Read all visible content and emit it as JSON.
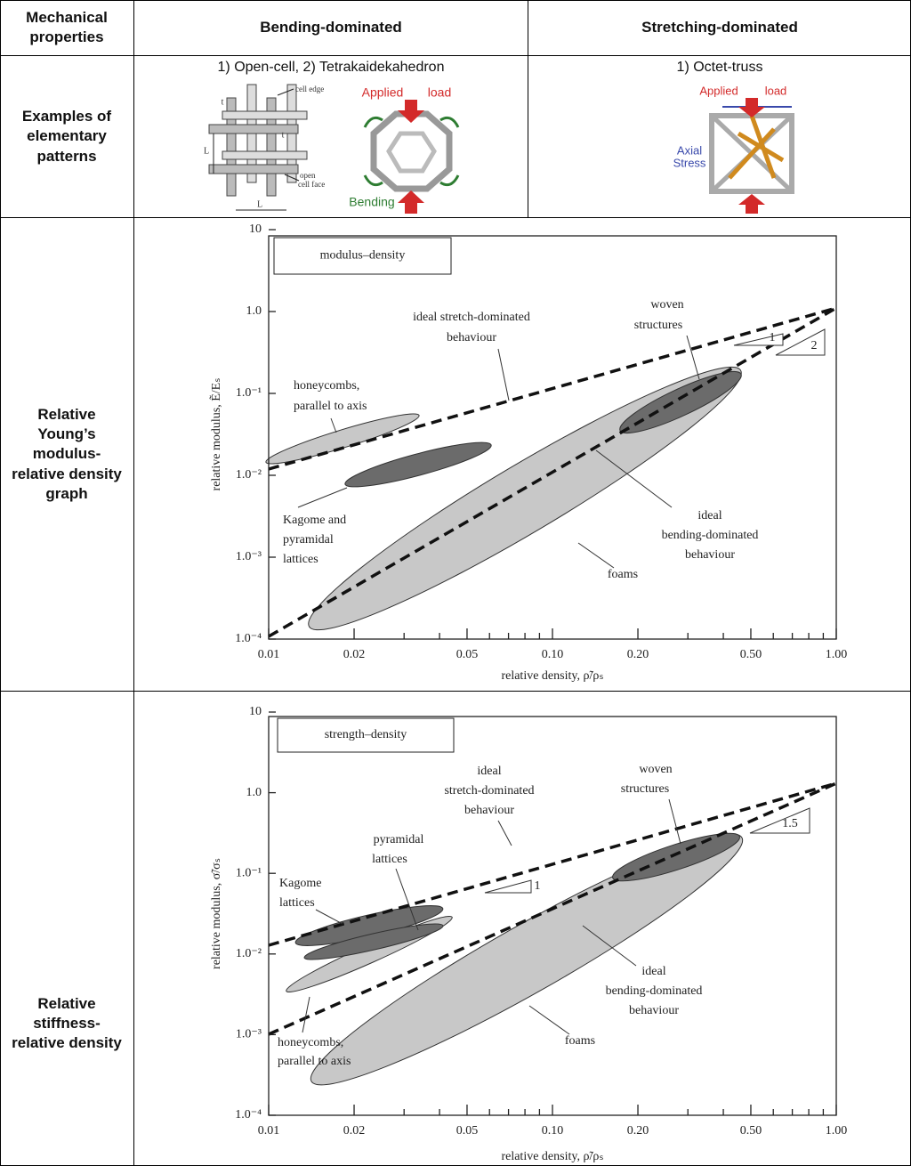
{
  "table": {
    "header": [
      "Mechanical properties",
      "Bending-dominated",
      "Stretching-dominated"
    ],
    "rows": [
      {
        "label": "Examples of elementary patterns",
        "bending": {
          "caption": "1) Open-cell, 2) Tetrakaidekahedron",
          "labels": [
            "cell edge",
            "open",
            "cell face",
            "t",
            "t",
            "L",
            "L",
            "Applied",
            "load",
            "Bending"
          ]
        },
        "stretching": {
          "caption": "1) Octet-truss",
          "labels": [
            "Applied",
            "load",
            "Axial",
            "Stress"
          ]
        }
      },
      {
        "label": "Relative Young’s modulus-relative density graph",
        "chart": {
          "type": "line",
          "log_x": true,
          "log_y": true,
          "legend_box": "modulus–density",
          "xlabel": "relative density, ρ̃/ρₛ",
          "ylabel": "relative modulus, Ẽ/Eₛ",
          "xlim": [
            0.01,
            1
          ],
          "ylim": [
            0.0001,
            10
          ],
          "xticks": [
            0.01,
            0.02,
            0.05,
            {
              "value": 0.1,
              "label": "0.10"
            },
            {
              "value": 0.2,
              "label": "0.20"
            },
            {
              "value": 0.5,
              "label": "0.50"
            },
            {
              "value": 1,
              "label": "1.00"
            }
          ],
          "xminorticks": [
            0.03,
            0.04,
            0.06,
            0.07,
            0.08,
            0.09,
            0.3,
            0.4,
            0.6,
            0.7,
            0.8,
            0.9
          ],
          "yticks": [
            10,
            {
              "value": 1,
              "label": "1.0"
            },
            {
              "value": 0.1,
              "label": "1.0⁻¹"
            },
            {
              "value": 0.01,
              "label": "1.0⁻²"
            },
            {
              "value": 0.001,
              "label": "1.0⁻³"
            },
            {
              "value": 0.0001,
              "label": "1.0⁻⁴"
            }
          ],
          "annotations": [
            {
              "lines": [
                "ideal stretch-dominated",
                "behaviour"
              ]
            },
            {
              "lines": [
                "woven",
                "structures"
              ]
            },
            {
              "lines": [
                "honeycombs,",
                "parallel to axis"
              ]
            },
            {
              "lines": [
                "Kagome and",
                "pyramidal",
                "lattices"
              ]
            },
            {
              "lines": [
                "ideal",
                "bending-dominated",
                "behaviour"
              ]
            },
            {
              "lines": [
                "foams"
              ]
            }
          ],
          "slope_labels": [
            "1",
            "2"
          ]
        }
      },
      {
        "label": "Relative stiffness-relative density",
        "chart": {
          "type": "line",
          "log_x": true,
          "log_y": true,
          "legend_box": "strength–density",
          "xlabel": "relative density, ρ̃/ρₛ",
          "ylabel": "relative modulus, σ̃/σₛ",
          "xlim": [
            0.01,
            1
          ],
          "ylim": [
            0.0001,
            10
          ],
          "xticks": [
            0.01,
            0.02,
            0.05,
            {
              "value": 0.1,
              "label": "0.10"
            },
            {
              "value": 0.2,
              "label": "0.20"
            },
            {
              "value": 0.5,
              "label": "0.50"
            },
            {
              "value": 1,
              "label": "1.00"
            }
          ],
          "xminorticks": [
            0.03,
            0.04,
            0.06,
            0.07,
            0.08,
            0.09,
            0.3,
            0.4,
            0.6,
            0.7,
            0.8,
            0.9
          ],
          "yticks": [
            10,
            {
              "value": 1,
              "label": "1.0"
            },
            {
              "value": 0.1,
              "label": "1.0⁻¹"
            },
            {
              "value": 0.01,
              "label": "1.0⁻²"
            },
            {
              "value": 0.001,
              "label": "1.0⁻³"
            },
            {
              "value": 0.0001,
              "label": "1.0⁻⁴"
            }
          ],
          "annotations": [
            {
              "lines": [
                "ideal",
                "stretch-dominated",
                "behaviour"
              ]
            },
            {
              "lines": [
                "woven",
                "structures"
              ]
            },
            {
              "lines": [
                "pyramidal",
                "lattices"
              ]
            },
            {
              "lines": [
                "Kagome",
                "lattices"
              ]
            },
            {
              "lines": [
                "honeycombs,",
                "parallel to axis"
              ]
            },
            {
              "lines": [
                "ideal",
                "bending-dominated",
                "behaviour"
              ]
            },
            {
              "lines": [
                "foams"
              ]
            }
          ],
          "slope_labels": [
            "1",
            "1.5"
          ]
        }
      }
    ]
  }
}
